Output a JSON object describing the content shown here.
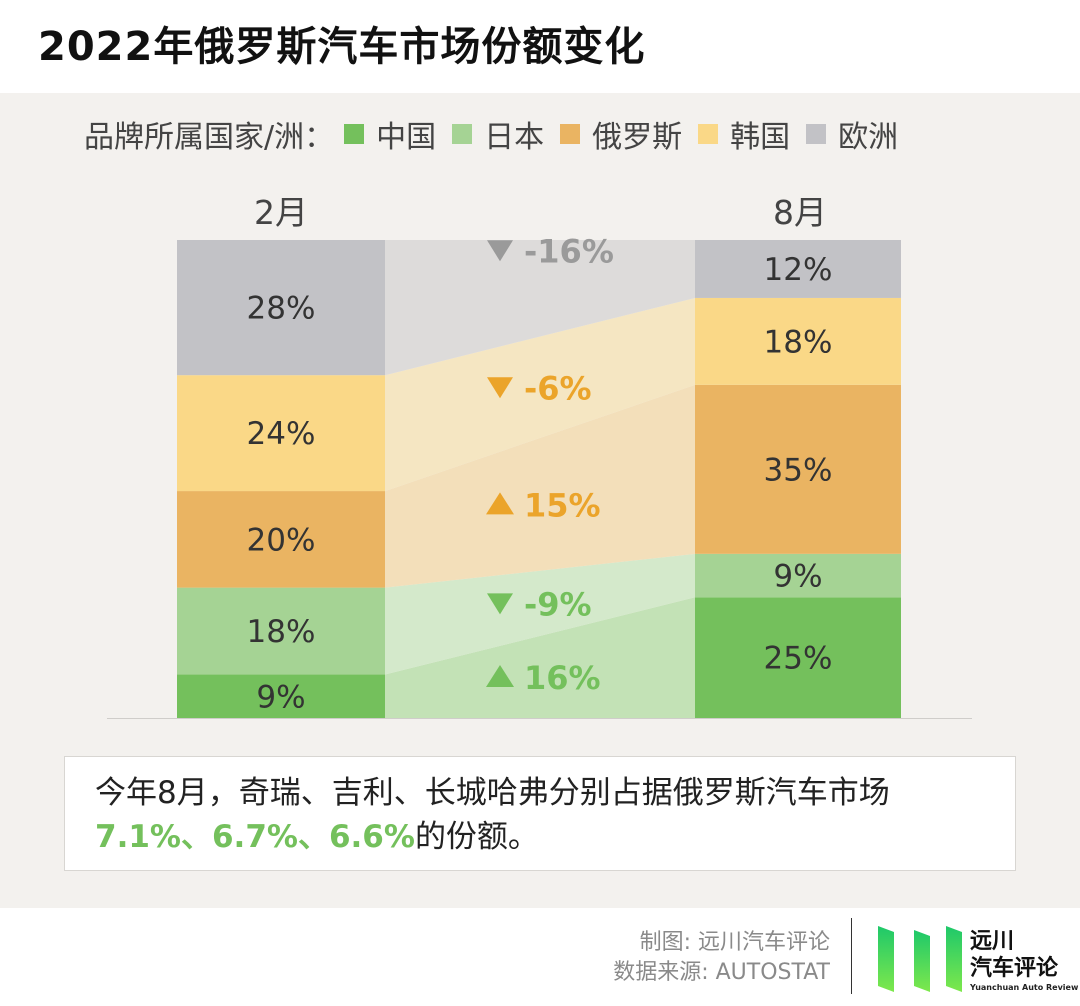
{
  "title": "2022年俄罗斯汽车市场份额变化",
  "legend": {
    "label": "品牌所属国家/洲：",
    "items": [
      {
        "name": "中国",
        "color": "#74c05c"
      },
      {
        "name": "日本",
        "color": "#a5d394"
      },
      {
        "name": "俄罗斯",
        "color": "#eab462"
      },
      {
        "name": "韩国",
        "color": "#fad887"
      },
      {
        "name": "欧洲",
        "color": "#c2c2c6"
      }
    ]
  },
  "chart_data": {
    "type": "bar",
    "categories": [
      "2月",
      "8月"
    ],
    "series": [
      {
        "name": "中国",
        "values": [
          9,
          25
        ],
        "labels": [
          "9%",
          "25%"
        ]
      },
      {
        "name": "日本",
        "values": [
          18,
          9
        ],
        "labels": [
          "18%",
          "9%"
        ]
      },
      {
        "name": "俄罗斯",
        "values": [
          20,
          35
        ],
        "labels": [
          "20%",
          "35%"
        ]
      },
      {
        "name": "韩国",
        "values": [
          24,
          18
        ],
        "labels": [
          "24%",
          "18%"
        ]
      },
      {
        "name": "欧洲",
        "values": [
          28,
          12
        ],
        "labels": [
          "28%",
          "12%"
        ]
      }
    ],
    "changes": [
      {
        "series": "欧洲",
        "direction": "down",
        "text": "-16%",
        "color": "#9a9a9a"
      },
      {
        "series": "韩国",
        "direction": "down",
        "text": "-6%",
        "color": "#eba42a"
      },
      {
        "series": "俄罗斯",
        "direction": "up",
        "text": "15%",
        "color": "#eba42a"
      },
      {
        "series": "日本",
        "direction": "down",
        "text": "-9%",
        "color": "#74c05c"
      },
      {
        "series": "中国",
        "direction": "up",
        "text": "16%",
        "color": "#74c05c"
      }
    ]
  },
  "note": {
    "line1": "今年8月，奇瑞、吉利、长城哈弗分别占据俄罗斯汽车市场",
    "highlight": "7.1%、6.7%、6.6%",
    "line2_rest": "的份额。"
  },
  "footer": {
    "credit": "制图: 远川汽车评论",
    "source": "数据来源: AUTOSTAT"
  },
  "logo": {
    "line1": "远川",
    "line2": "汽车评论",
    "sub": "Yuanchuan Auto Review"
  }
}
